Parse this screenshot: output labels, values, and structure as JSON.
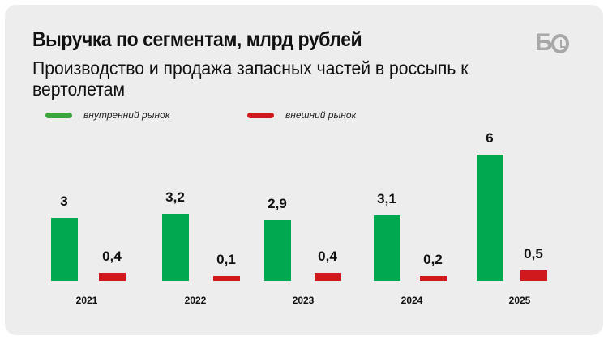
{
  "brand": {
    "logo": "БО"
  },
  "chart_data": {
    "type": "bar",
    "title": "Выручка по сегментам, млрд рублей",
    "subtitle": "Производство и продажа запасных частей в россыпь к вертолетам",
    "categories": [
      "2021",
      "2022",
      "2023",
      "2024",
      "2025"
    ],
    "series": [
      {
        "name": "внутренний рынок",
        "color": "#00a84f",
        "values": [
          3,
          3.2,
          2.9,
          3.1,
          6
        ],
        "labels": [
          "3",
          "3,2",
          "2,9",
          "3,1",
          "6"
        ]
      },
      {
        "name": "внешний рынок",
        "color": "#d0191d",
        "values": [
          0.4,
          0.1,
          0.4,
          0.2,
          0.5
        ],
        "labels": [
          "0,4",
          "0,1",
          "0,4",
          "0,2",
          "0,5"
        ]
      }
    ],
    "legend": "top-left",
    "grid": false,
    "ylim": [
      0,
      6
    ]
  }
}
